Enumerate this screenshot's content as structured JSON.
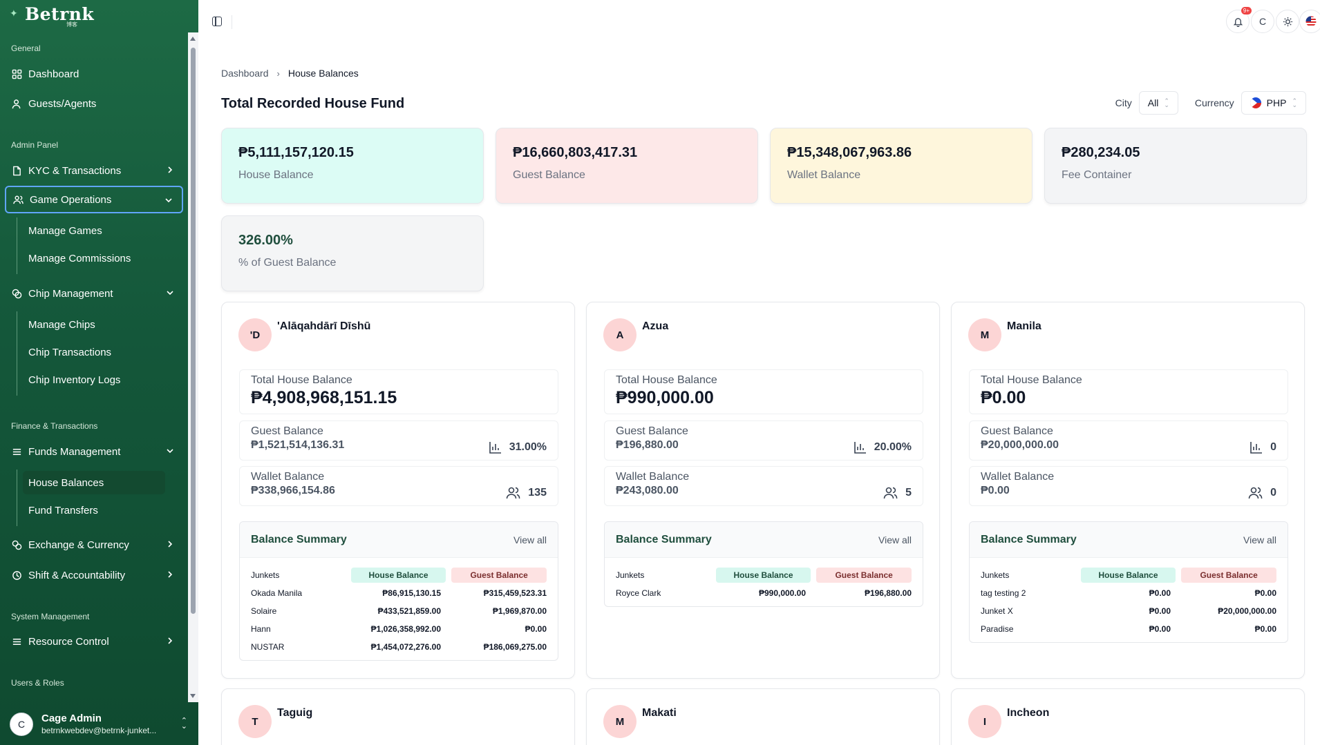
{
  "brand": {
    "name": "Betrnk",
    "sub": "博客"
  },
  "sidebar": {
    "sections": {
      "general": "General",
      "admin": "Admin Panel",
      "finance": "Finance & Transactions",
      "system": "System Management",
      "users": "Users & Roles"
    },
    "items": {
      "dashboard": "Dashboard",
      "guests": "Guests/Agents",
      "kyc": "KYC & Transactions",
      "game_ops": "Game Operations",
      "manage_games": "Manage Games",
      "manage_commissions": "Manage Commissions",
      "chip_mgmt": "Chip Management",
      "manage_chips": "Manage Chips",
      "chip_transactions": "Chip Transactions",
      "chip_logs": "Chip Inventory Logs",
      "funds_mgmt": "Funds Management",
      "house_balances": "House Balances",
      "fund_transfers": "Fund Transfers",
      "exchange": "Exchange & Currency",
      "shift": "Shift & Accountability",
      "resource": "Resource Control"
    },
    "user": {
      "initial": "C",
      "name": "Cage Admin",
      "email": "betrnkwebdev@betrnk-junket..."
    }
  },
  "topbar": {
    "notif_badge": "9+",
    "user_initial": "C"
  },
  "breadcrumb": {
    "root": "Dashboard",
    "current": "House Balances"
  },
  "page_title": "Total Recorded House Fund",
  "filters": {
    "city_label": "City",
    "city_value": "All",
    "currency_label": "Currency",
    "currency_value": "PHP"
  },
  "stats": [
    {
      "value": "₱5,111,157,120.15",
      "label": "House Balance",
      "bg": "#dcfcf5"
    },
    {
      "value": "₱16,660,803,417.31",
      "label": "Guest Balance",
      "bg": "#fde8e8"
    },
    {
      "value": "₱15,348,067,963.86",
      "label": "Wallet Balance",
      "bg": "#fef6dc"
    },
    {
      "value": "₱280,234.05",
      "label": "Fee Container",
      "bg": "#f3f4f6"
    },
    {
      "value": "326.00%",
      "label": "% of Guest Balance",
      "bg": "#f4f5f6"
    }
  ],
  "labels": {
    "total_house": "Total House Balance",
    "guest_balance": "Guest Balance",
    "wallet_balance": "Wallet Balance",
    "balance_summary": "Balance Summary",
    "view_all": "View all",
    "junkets": "Junkets",
    "house_col": "House Balance",
    "guest_col": "Guest Balance"
  },
  "cities": [
    {
      "initial": "'D",
      "name": "'Alāqahdārī Dīshū",
      "total_house": "₱4,908,968,151.15",
      "guest": "₱1,521,514,136.31",
      "guest_pct": "31.00%",
      "wallet": "₱338,966,154.86",
      "wallet_count": "135",
      "rows": [
        {
          "junket": "Okada Manila",
          "house": "₱86,915,130.15",
          "guest": "₱315,459,523.31"
        },
        {
          "junket": "Solaire",
          "house": "₱433,521,859.00",
          "guest": "₱1,969,870.00"
        },
        {
          "junket": "Hann",
          "house": "₱1,026,358,992.00",
          "guest": "₱0.00"
        },
        {
          "junket": "NUSTAR",
          "house": "₱1,454,072,276.00",
          "guest": "₱186,069,275.00"
        }
      ]
    },
    {
      "initial": "A",
      "name": "Azua",
      "total_house": "₱990,000.00",
      "guest": "₱196,880.00",
      "guest_pct": "20.00%",
      "wallet": "₱243,080.00",
      "wallet_count": "5",
      "rows": [
        {
          "junket": "Royce Clark",
          "house": "₱990,000.00",
          "guest": "₱196,880.00"
        }
      ]
    },
    {
      "initial": "M",
      "name": "Manila",
      "total_house": "₱0.00",
      "guest": "₱20,000,000.00",
      "guest_pct": "0",
      "wallet": "₱0.00",
      "wallet_count": "0",
      "rows": [
        {
          "junket": "tag testing 2",
          "house": "₱0.00",
          "guest": "₱0.00"
        },
        {
          "junket": "Junket X",
          "house": "₱0.00",
          "guest": "₱20,000,000.00"
        },
        {
          "junket": "Paradise",
          "house": "₱0.00",
          "guest": "₱0.00"
        }
      ]
    }
  ],
  "more_cities": [
    {
      "initial": "T",
      "name": "Taguig"
    },
    {
      "initial": "M",
      "name": "Makati"
    },
    {
      "initial": "I",
      "name": "Incheon"
    }
  ]
}
